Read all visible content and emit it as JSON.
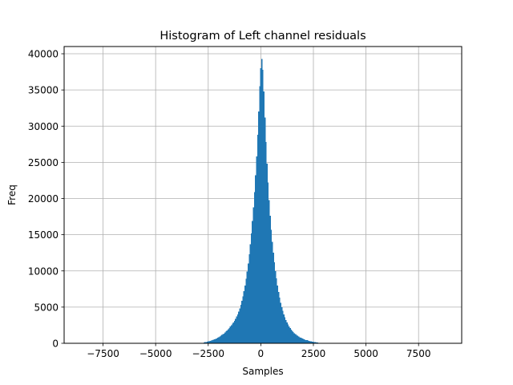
{
  "chart_data": {
    "type": "bar",
    "title": "Histogram of Left channel residuals",
    "xlabel": "Samples",
    "ylabel": "Freq",
    "xlim": [
      -9350,
      9550
    ],
    "ylim": [
      0,
      41000
    ],
    "grid": true,
    "bar_color": "#1f77b4",
    "x_ticks": [
      -7500,
      -5000,
      -2500,
      0,
      2500,
      5000,
      7500
    ],
    "x_tick_labels": [
      "−7500",
      "−5000",
      "−2500",
      "0",
      "2500",
      "5000",
      "7500"
    ],
    "y_ticks": [
      0,
      5000,
      10000,
      15000,
      20000,
      25000,
      30000,
      35000,
      40000
    ],
    "y_tick_labels": [
      "0",
      "5000",
      "10000",
      "15000",
      "20000",
      "25000",
      "30000",
      "35000",
      "40000"
    ],
    "bin_width": 50,
    "bins": [
      {
        "x": -2700,
        "y": 100
      },
      {
        "x": -2650,
        "y": 150
      },
      {
        "x": -2600,
        "y": 180
      },
      {
        "x": -2550,
        "y": 220
      },
      {
        "x": -2500,
        "y": 260
      },
      {
        "x": -2450,
        "y": 300
      },
      {
        "x": -2400,
        "y": 350
      },
      {
        "x": -2350,
        "y": 400
      },
      {
        "x": -2300,
        "y": 450
      },
      {
        "x": -2250,
        "y": 500
      },
      {
        "x": -2200,
        "y": 560
      },
      {
        "x": -2150,
        "y": 620
      },
      {
        "x": -2100,
        "y": 680
      },
      {
        "x": -2050,
        "y": 760
      },
      {
        "x": -2000,
        "y": 850
      },
      {
        "x": -1950,
        "y": 950
      },
      {
        "x": -1900,
        "y": 1050
      },
      {
        "x": -1850,
        "y": 1150
      },
      {
        "x": -1800,
        "y": 1250
      },
      {
        "x": -1750,
        "y": 1350
      },
      {
        "x": -1700,
        "y": 1500
      },
      {
        "x": -1650,
        "y": 1650
      },
      {
        "x": -1600,
        "y": 1800
      },
      {
        "x": -1550,
        "y": 1950
      },
      {
        "x": -1500,
        "y": 2100
      },
      {
        "x": -1450,
        "y": 2300
      },
      {
        "x": -1400,
        "y": 2500
      },
      {
        "x": -1350,
        "y": 2700
      },
      {
        "x": -1300,
        "y": 2900
      },
      {
        "x": -1250,
        "y": 3100
      },
      {
        "x": -1200,
        "y": 3400
      },
      {
        "x": -1150,
        "y": 3700
      },
      {
        "x": -1100,
        "y": 4000
      },
      {
        "x": -1050,
        "y": 4400
      },
      {
        "x": -1000,
        "y": 4800
      },
      {
        "x": -950,
        "y": 5300
      },
      {
        "x": -900,
        "y": 5900
      },
      {
        "x": -850,
        "y": 6500
      },
      {
        "x": -800,
        "y": 7200
      },
      {
        "x": -750,
        "y": 8000
      },
      {
        "x": -700,
        "y": 8900
      },
      {
        "x": -650,
        "y": 9900
      },
      {
        "x": -600,
        "y": 11000
      },
      {
        "x": -550,
        "y": 12300
      },
      {
        "x": -500,
        "y": 13700
      },
      {
        "x": -450,
        "y": 15200
      },
      {
        "x": -400,
        "y": 16900
      },
      {
        "x": -350,
        "y": 18800
      },
      {
        "x": -300,
        "y": 20900
      },
      {
        "x": -250,
        "y": 23200
      },
      {
        "x": -200,
        "y": 25800
      },
      {
        "x": -150,
        "y": 28800
      },
      {
        "x": -100,
        "y": 32000
      },
      {
        "x": -50,
        "y": 35500
      },
      {
        "x": 0,
        "y": 38000
      },
      {
        "x": 50,
        "y": 39300
      },
      {
        "x": 100,
        "y": 37800
      },
      {
        "x": 150,
        "y": 34800
      },
      {
        "x": 200,
        "y": 31200
      },
      {
        "x": 250,
        "y": 27800
      },
      {
        "x": 300,
        "y": 24800
      },
      {
        "x": 350,
        "y": 22200
      },
      {
        "x": 400,
        "y": 19800
      },
      {
        "x": 450,
        "y": 17600
      },
      {
        "x": 500,
        "y": 15700
      },
      {
        "x": 550,
        "y": 14000
      },
      {
        "x": 600,
        "y": 12500
      },
      {
        "x": 650,
        "y": 11200
      },
      {
        "x": 700,
        "y": 10000
      },
      {
        "x": 750,
        "y": 9000
      },
      {
        "x": 800,
        "y": 8000
      },
      {
        "x": 850,
        "y": 7100
      },
      {
        "x": 900,
        "y": 6300
      },
      {
        "x": 950,
        "y": 5600
      },
      {
        "x": 1000,
        "y": 5000
      },
      {
        "x": 1050,
        "y": 4500
      },
      {
        "x": 1100,
        "y": 4000
      },
      {
        "x": 1150,
        "y": 3600
      },
      {
        "x": 1200,
        "y": 3200
      },
      {
        "x": 1250,
        "y": 2900
      },
      {
        "x": 1300,
        "y": 2600
      },
      {
        "x": 1350,
        "y": 2350
      },
      {
        "x": 1400,
        "y": 2100
      },
      {
        "x": 1450,
        "y": 1900
      },
      {
        "x": 1500,
        "y": 1700
      },
      {
        "x": 1550,
        "y": 1550
      },
      {
        "x": 1600,
        "y": 1400
      },
      {
        "x": 1650,
        "y": 1250
      },
      {
        "x": 1700,
        "y": 1150
      },
      {
        "x": 1750,
        "y": 1050
      },
      {
        "x": 1800,
        "y": 950
      },
      {
        "x": 1850,
        "y": 850
      },
      {
        "x": 1900,
        "y": 780
      },
      {
        "x": 1950,
        "y": 700
      },
      {
        "x": 2000,
        "y": 640
      },
      {
        "x": 2050,
        "y": 580
      },
      {
        "x": 2100,
        "y": 520
      },
      {
        "x": 2150,
        "y": 470
      },
      {
        "x": 2200,
        "y": 420
      },
      {
        "x": 2250,
        "y": 380
      },
      {
        "x": 2300,
        "y": 340
      },
      {
        "x": 2350,
        "y": 300
      },
      {
        "x": 2400,
        "y": 260
      },
      {
        "x": 2450,
        "y": 230
      },
      {
        "x": 2500,
        "y": 200
      },
      {
        "x": 2550,
        "y": 170
      },
      {
        "x": 2600,
        "y": 140
      },
      {
        "x": 2650,
        "y": 110
      },
      {
        "x": 2700,
        "y": 90
      },
      {
        "x": 2750,
        "y": 70
      }
    ]
  }
}
